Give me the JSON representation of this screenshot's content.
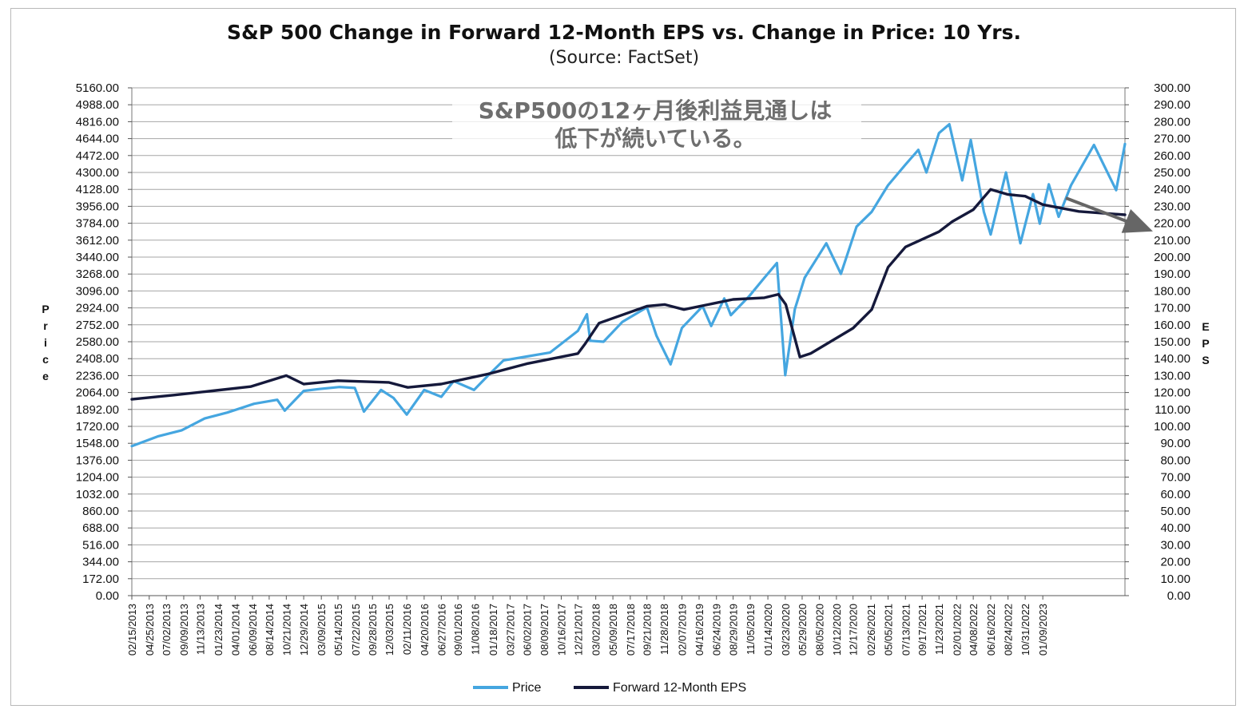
{
  "chart_data": {
    "type": "line",
    "title": "S&P 500 Change in Forward 12-Month EPS vs. Change in Price: 10 Yrs.",
    "subtitle": "(Source: FactSet)",
    "annotation_lines": [
      "S&P500の12ヶ月後利益見通しは",
      "低下が続いている。"
    ],
    "ylabel_left": "Price",
    "ylabel_right": "EPS",
    "ylim_left": [
      0,
      5160
    ],
    "ylim_right": [
      0,
      300
    ],
    "y_ticks_left": [
      "5160.00",
      "4988.00",
      "4816.00",
      "4644.00",
      "4472.00",
      "4300.00",
      "4128.00",
      "3956.00",
      "3784.00",
      "3612.00",
      "3440.00",
      "3268.00",
      "3096.00",
      "2924.00",
      "2752.00",
      "2580.00",
      "2408.00",
      "2236.00",
      "2064.00",
      "1892.00",
      "1720.00",
      "1548.00",
      "1376.00",
      "1204.00",
      "1032.00",
      "860.00",
      "688.00",
      "516.00",
      "344.00",
      "172.00",
      "0.00"
    ],
    "y_ticks_right": [
      "300.00",
      "290.00",
      "280.00",
      "270.00",
      "260.00",
      "250.00",
      "240.00",
      "230.00",
      "220.00",
      "210.00",
      "200.00",
      "190.00",
      "180.00",
      "170.00",
      "160.00",
      "150.00",
      "140.00",
      "130.00",
      "120.00",
      "110.00",
      "100.00",
      "90.00",
      "80.00",
      "70.00",
      "60.00",
      "50.00",
      "40.00",
      "30.00",
      "20.00",
      "10.00",
      "0.00"
    ],
    "x_ticks": [
      "02/15/2013",
      "04/25/2013",
      "07/02/2013",
      "09/09/2013",
      "11/13/2013",
      "01/23/2014",
      "04/01/2014",
      "06/09/2014",
      "08/14/2014",
      "10/21/2014",
      "12/29/2014",
      "03/09/2015",
      "05/14/2015",
      "07/22/2015",
      "09/28/2015",
      "12/03/2015",
      "02/11/2016",
      "04/20/2016",
      "06/27/2016",
      "09/01/2016",
      "11/08/2016",
      "01/18/2017",
      "03/27/2017",
      "06/02/2017",
      "08/09/2017",
      "10/16/2017",
      "12/21/2017",
      "03/02/2018",
      "05/09/2018",
      "07/17/2018",
      "09/21/2018",
      "11/28/2018",
      "02/07/2019",
      "04/16/2019",
      "06/24/2019",
      "08/29/2019",
      "11/05/2019",
      "01/14/2020",
      "03/23/2020",
      "05/29/2020",
      "08/05/2020",
      "10/12/2020",
      "12/17/2020",
      "02/26/2021",
      "05/05/2021",
      "07/13/2021",
      "09/17/2021",
      "11/23/2021",
      "02/01/2022",
      "04/08/2022",
      "06/16/2022",
      "08/24/2022",
      "10/31/2022",
      "01/09/2023"
    ],
    "x_end": "2023-12-01",
    "grid": true,
    "legend_position": "bottom",
    "series": [
      {
        "name": "Price",
        "axis": "left",
        "color": "#45a6e0",
        "points": [
          [
            "2013-02-15",
            1520
          ],
          [
            "2013-06-01",
            1620
          ],
          [
            "2013-09-01",
            1680
          ],
          [
            "2013-12-01",
            1800
          ],
          [
            "2014-03-01",
            1860
          ],
          [
            "2014-06-15",
            1950
          ],
          [
            "2014-09-15",
            1990
          ],
          [
            "2014-10-15",
            1880
          ],
          [
            "2014-12-29",
            2080
          ],
          [
            "2015-03-01",
            2100
          ],
          [
            "2015-05-20",
            2120
          ],
          [
            "2015-07-20",
            2110
          ],
          [
            "2015-08-25",
            1870
          ],
          [
            "2015-11-01",
            2090
          ],
          [
            "2015-12-20",
            2010
          ],
          [
            "2016-02-11",
            1840
          ],
          [
            "2016-04-20",
            2090
          ],
          [
            "2016-06-27",
            2020
          ],
          [
            "2016-08-15",
            2180
          ],
          [
            "2016-11-04",
            2090
          ],
          [
            "2016-12-31",
            2240
          ],
          [
            "2017-03-01",
            2390
          ],
          [
            "2017-06-01",
            2430
          ],
          [
            "2017-09-01",
            2470
          ],
          [
            "2017-12-21",
            2690
          ],
          [
            "2018-01-26",
            2860
          ],
          [
            "2018-02-08",
            2590
          ],
          [
            "2018-04-02",
            2580
          ],
          [
            "2018-06-15",
            2780
          ],
          [
            "2018-09-21",
            2930
          ],
          [
            "2018-10-29",
            2640
          ],
          [
            "2018-12-24",
            2350
          ],
          [
            "2019-02-07",
            2720
          ],
          [
            "2019-04-30",
            2940
          ],
          [
            "2019-06-03",
            2740
          ],
          [
            "2019-07-25",
            3020
          ],
          [
            "2019-08-20",
            2850
          ],
          [
            "2019-10-31",
            3040
          ],
          [
            "2019-12-31",
            3230
          ],
          [
            "2020-02-19",
            3380
          ],
          [
            "2020-03-23",
            2240
          ],
          [
            "2020-04-30",
            2910
          ],
          [
            "2020-06-08",
            3230
          ],
          [
            "2020-09-02",
            3580
          ],
          [
            "2020-10-30",
            3270
          ],
          [
            "2020-12-31",
            3750
          ],
          [
            "2021-03-01",
            3900
          ],
          [
            "2021-05-05",
            4170
          ],
          [
            "2021-07-13",
            4380
          ],
          [
            "2021-09-02",
            4530
          ],
          [
            "2021-10-04",
            4300
          ],
          [
            "2021-11-23",
            4700
          ],
          [
            "2022-01-03",
            4790
          ],
          [
            "2022-02-23",
            4220
          ],
          [
            "2022-03-29",
            4630
          ],
          [
            "2022-05-20",
            3900
          ],
          [
            "2022-06-16",
            3670
          ],
          [
            "2022-08-16",
            4300
          ],
          [
            "2022-10-12",
            3580
          ],
          [
            "2022-12-01",
            4080
          ],
          [
            "2022-12-28",
            3780
          ],
          [
            "2023-02-02",
            4180
          ],
          [
            "2023-03-13",
            3850
          ],
          [
            "2023-05-01",
            4170
          ],
          [
            "2023-07-31",
            4580
          ],
          [
            "2023-10-27",
            4120
          ],
          [
            "2023-12-01",
            4590
          ]
        ]
      },
      {
        "name": "Forward 12-Month EPS",
        "axis": "right",
        "color": "#15193b",
        "points": [
          [
            "2013-02-15",
            116
          ],
          [
            "2013-08-01",
            118.5
          ],
          [
            "2014-01-01",
            121
          ],
          [
            "2014-06-01",
            123.5
          ],
          [
            "2014-10-21",
            130
          ],
          [
            "2014-12-29",
            125
          ],
          [
            "2015-05-14",
            127
          ],
          [
            "2015-12-01",
            126
          ],
          [
            "2016-02-15",
            123
          ],
          [
            "2016-06-27",
            125
          ],
          [
            "2016-12-31",
            131
          ],
          [
            "2017-06-01",
            137
          ],
          [
            "2017-12-21",
            143
          ],
          [
            "2018-01-20",
            149
          ],
          [
            "2018-03-15",
            161
          ],
          [
            "2018-09-21",
            171
          ],
          [
            "2018-11-30",
            172
          ],
          [
            "2019-02-15",
            169
          ],
          [
            "2019-08-29",
            175
          ],
          [
            "2019-12-31",
            176
          ],
          [
            "2020-02-25",
            178
          ],
          [
            "2020-03-25",
            172
          ],
          [
            "2020-05-20",
            141
          ],
          [
            "2020-07-01",
            143
          ],
          [
            "2020-12-17",
            158
          ],
          [
            "2021-03-01",
            169
          ],
          [
            "2021-05-05",
            194
          ],
          [
            "2021-07-13",
            206
          ],
          [
            "2021-11-23",
            215
          ],
          [
            "2022-01-15",
            221
          ],
          [
            "2022-04-08",
            228
          ],
          [
            "2022-06-16",
            240
          ],
          [
            "2022-08-24",
            237
          ],
          [
            "2022-10-31",
            236
          ],
          [
            "2023-01-09",
            231
          ],
          [
            "2023-06-01",
            227
          ],
          [
            "2023-12-01",
            225
          ]
        ]
      }
    ]
  }
}
